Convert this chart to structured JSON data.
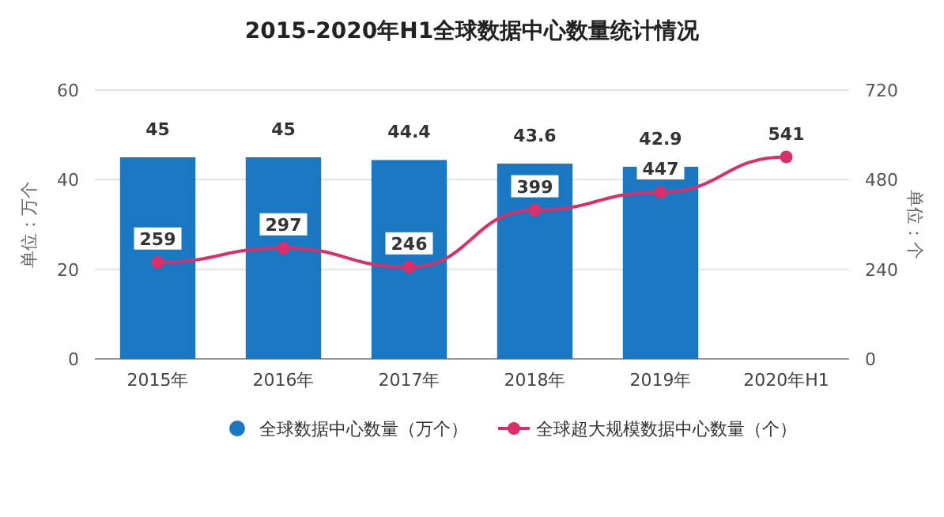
{
  "chart_data": {
    "type": "bar",
    "title": "2015-2020年H1全球数据中心数量统计情况",
    "categories": [
      "2015年",
      "2016年",
      "2017年",
      "2018年",
      "2019年",
      "2020年H1"
    ],
    "ylabel": "单位：万个",
    "y2label": "单位：个",
    "ylim": [
      0,
      60
    ],
    "yticks": [
      0,
      20,
      40,
      60
    ],
    "y2lim": [
      0,
      720
    ],
    "y2ticks": [
      0,
      240,
      480,
      720
    ],
    "grid": "y",
    "legend": "bottom",
    "data_labels": true,
    "marker": "circle",
    "series": [
      {
        "name": "全球数据中心数量（万个）",
        "color": "#1a78c2",
        "values": [
          45,
          45,
          44.4,
          43.6,
          42.9,
          null
        ]
      },
      {
        "name": "全球超大规模数据中心数量（个）",
        "type": "line",
        "axis": "y2",
        "color": "#d9306a",
        "values": [
          259,
          297,
          246,
          399,
          447,
          541
        ]
      }
    ]
  }
}
